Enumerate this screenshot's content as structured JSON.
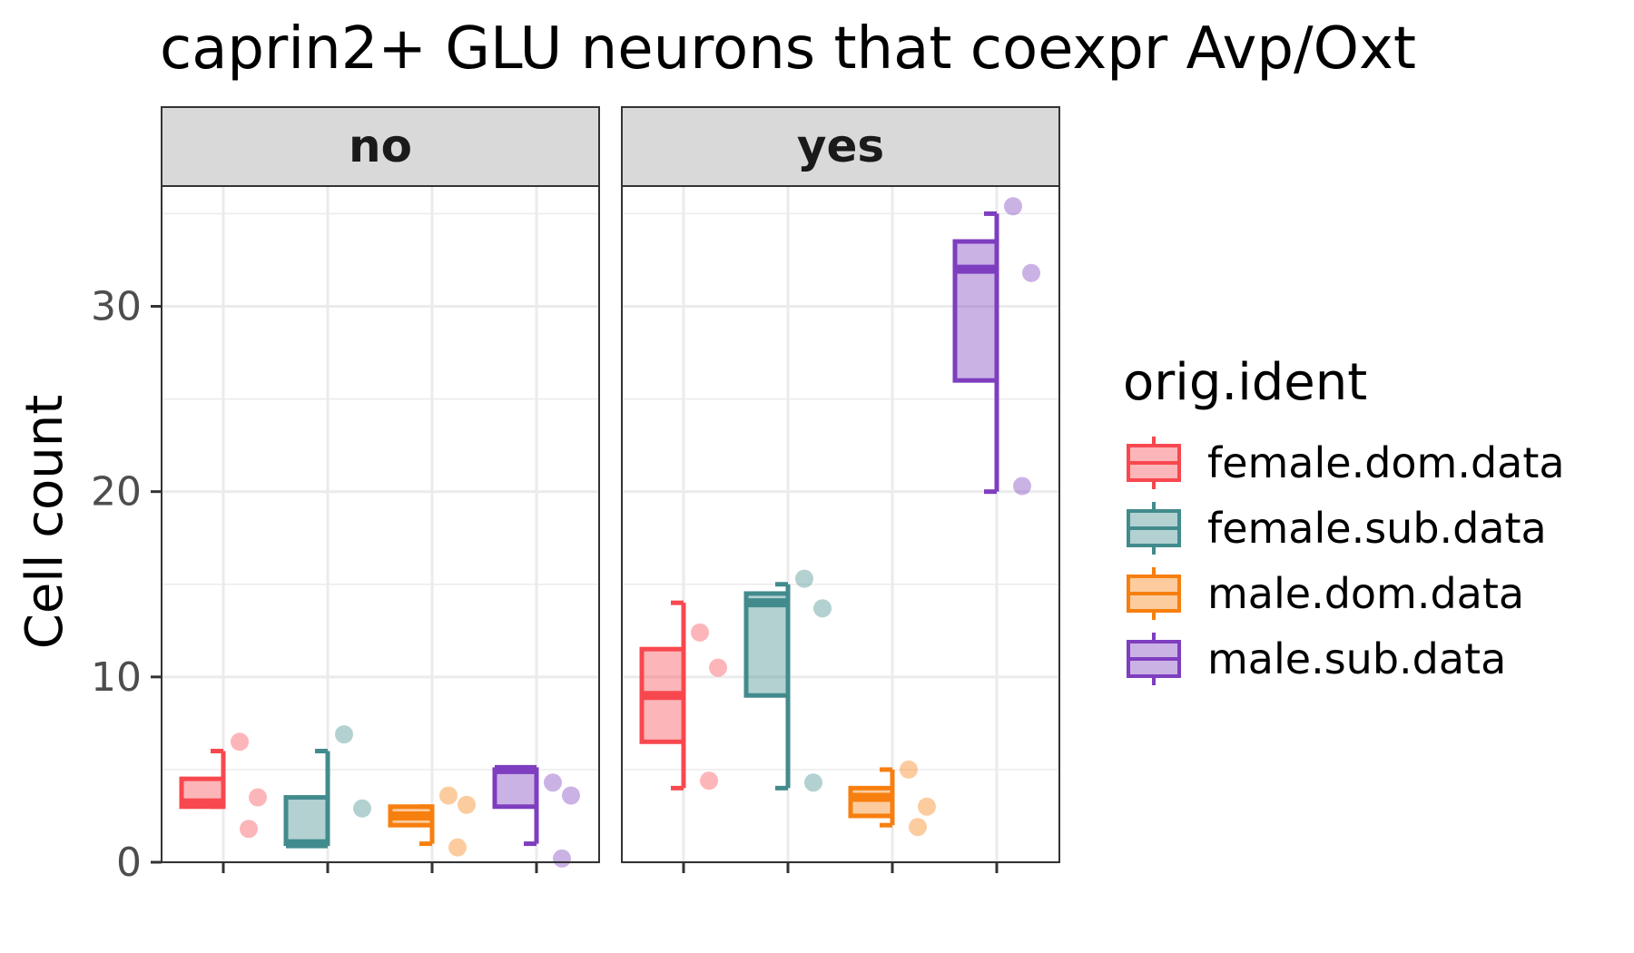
{
  "chart_data": {
    "type": "box",
    "title": "caprin2+ GLU neurons that coexpr Avp/Oxt",
    "xlabel": "",
    "ylabel": "Cell count",
    "ylim": [
      0,
      36
    ],
    "yticks": [
      0,
      10,
      20,
      30
    ],
    "grid": true,
    "facets": [
      "no",
      "yes"
    ],
    "legend": {
      "title": "orig.ident",
      "position": "right"
    },
    "colors": {
      "female.dom.data": "#F8484F",
      "female.sub.data": "#428B8D",
      "male.dom.data": "#F77F0F",
      "male.sub.data": "#7E3EBF"
    },
    "series": [
      {
        "name": "female.dom.data",
        "boxes": {
          "no": {
            "min": 3,
            "q1": 3,
            "median": 3.2,
            "q3": 4.5,
            "max": 6
          },
          "yes": {
            "min": 4,
            "q1": 6.5,
            "median": 9,
            "q3": 11.5,
            "max": 14
          }
        },
        "points": {
          "no": [
            6.5,
            3.5,
            1.8
          ],
          "yes": [
            12.4,
            10.5,
            4.4
          ]
        }
      },
      {
        "name": "female.sub.data",
        "boxes": {
          "no": {
            "min": 1,
            "q1": 1,
            "median": 1,
            "q3": 3.5,
            "max": 6
          },
          "yes": {
            "min": 4,
            "q1": 9,
            "median": 14,
            "q3": 14.5,
            "max": 15
          }
        },
        "points": {
          "no": [
            6.9,
            2.9
          ],
          "yes": [
            15.3,
            13.7,
            4.3
          ]
        }
      },
      {
        "name": "male.dom.data",
        "boxes": {
          "no": {
            "min": 1,
            "q1": 2,
            "median": 2.5,
            "q3": 3,
            "max": 3
          },
          "yes": {
            "min": 2,
            "q1": 2.5,
            "median": 3.5,
            "q3": 4,
            "max": 5
          }
        },
        "points": {
          "no": [
            3.6,
            3.1,
            0.8
          ],
          "yes": [
            5,
            3,
            1.9
          ]
        }
      },
      {
        "name": "male.sub.data",
        "boxes": {
          "no": {
            "min": 1,
            "q1": 3,
            "median": 5,
            "q3": 5,
            "max": 5
          },
          "yes": {
            "min": 20,
            "q1": 26,
            "median": 32,
            "q3": 33.5,
            "max": 35
          }
        },
        "points": {
          "no": [
            4.3,
            3.6,
            0.2
          ],
          "yes": [
            35.4,
            31.8,
            20.3
          ]
        }
      }
    ]
  }
}
